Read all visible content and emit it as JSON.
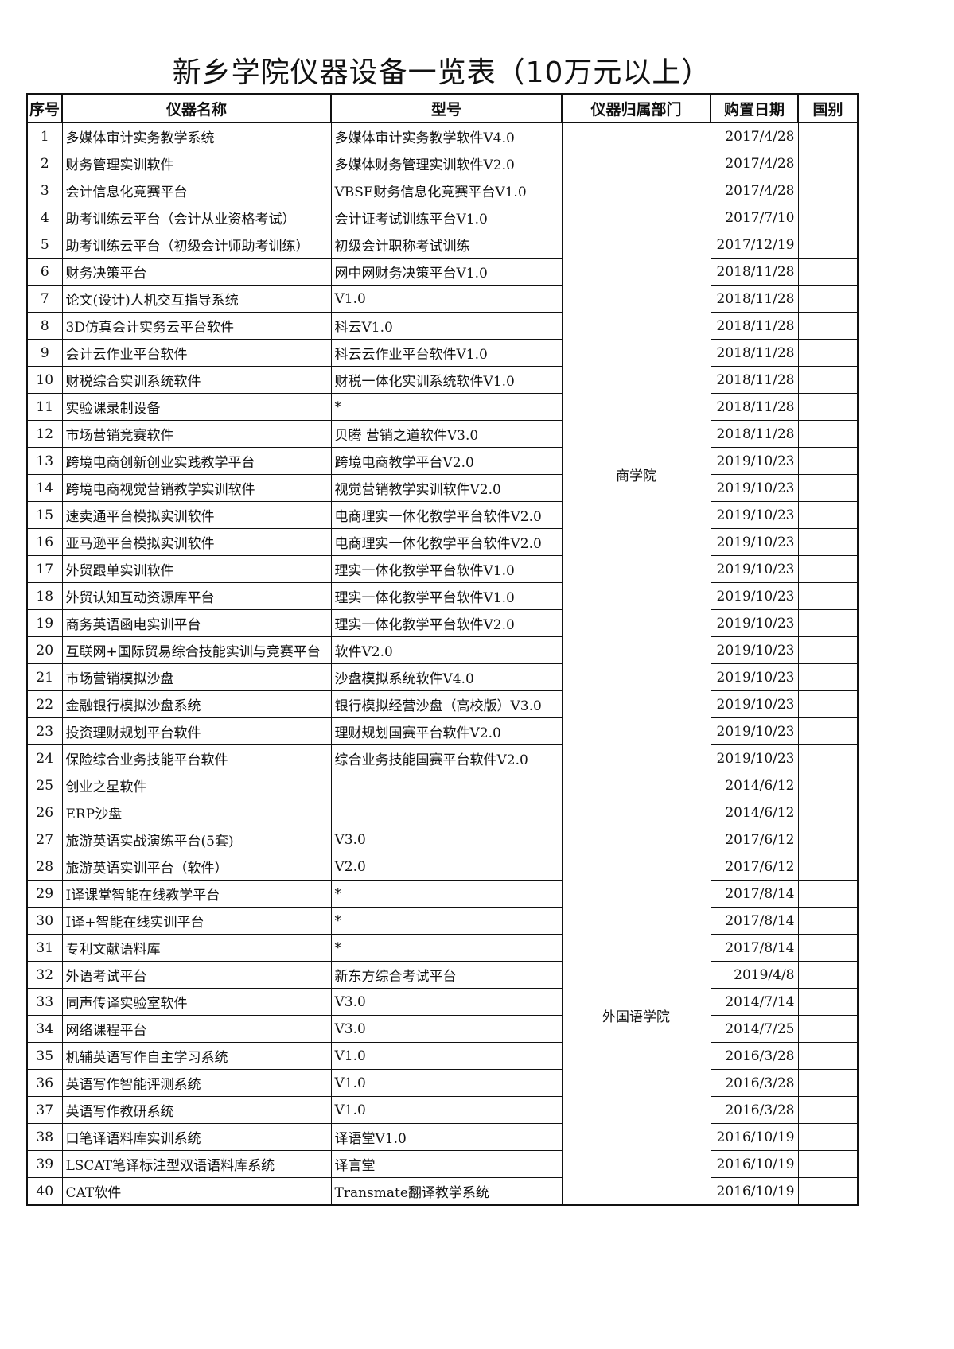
{
  "title": "新乡学院仪器设备一览表（10万元以上）",
  "headers": {
    "index": "序号",
    "name": "仪器名称",
    "model": "型号",
    "dept": "仪器归属部门",
    "date": "购置日期",
    "country": "国别"
  },
  "departments": [
    {
      "name": "商学院",
      "rows": [
        1,
        26
      ]
    },
    {
      "name": "外国语学院",
      "rows": [
        27,
        40
      ]
    }
  ],
  "rows": [
    {
      "no": "1",
      "name": "多媒体审计实务教学系统",
      "model": "多媒体审计实务教学软件V4.0",
      "date": "2017/4/28",
      "country": ""
    },
    {
      "no": "2",
      "name": "财务管理实训软件",
      "model": "多媒体财务管理实训软件V2.0",
      "date": "2017/4/28",
      "country": ""
    },
    {
      "no": "3",
      "name": "会计信息化竞赛平台",
      "model": "VBSE财务信息化竞赛平台V1.0",
      "date": "2017/4/28",
      "country": ""
    },
    {
      "no": "4",
      "name": "助考训练云平台（会计从业资格考试）",
      "model": "会计证考试训练平台V1.0",
      "date": "2017/7/10",
      "country": ""
    },
    {
      "no": "5",
      "name": "助考训练云平台（初级会计师助考训练）",
      "model": "初级会计职称考试训练",
      "date": "2017/12/19",
      "country": ""
    },
    {
      "no": "6",
      "name": "财务决策平台",
      "model": "网中网财务决策平台V1.0",
      "date": "2018/11/28",
      "country": ""
    },
    {
      "no": "7",
      "name": "论文(设计)人机交互指导系统",
      "model": "V1.0",
      "date": "2018/11/28",
      "country": ""
    },
    {
      "no": "8",
      "name": "3D仿真会计实务云平台软件",
      "model": "科云V1.0",
      "date": "2018/11/28",
      "country": ""
    },
    {
      "no": "9",
      "name": "会计云作业平台软件",
      "model": "科云云作业平台软件V1.0",
      "date": "2018/11/28",
      "country": ""
    },
    {
      "no": "10",
      "name": "财税综合实训系统软件",
      "model": "财税一体化实训系统软件V1.0",
      "date": "2018/11/28",
      "country": ""
    },
    {
      "no": "11",
      "name": "实验课录制设备",
      "model": "*",
      "date": "2018/11/28",
      "country": ""
    },
    {
      "no": "12",
      "name": "市场营销竞赛软件",
      "model": "贝腾 营销之道软件V3.0",
      "date": "2018/11/28",
      "country": ""
    },
    {
      "no": "13",
      "name": "跨境电商创新创业实践教学平台",
      "model": "跨境电商教学平台V2.0",
      "date": "2019/10/23",
      "country": ""
    },
    {
      "no": "14",
      "name": "跨境电商视觉营销教学实训软件",
      "model": "视觉营销教学实训软件V2.0",
      "date": "2019/10/23",
      "country": ""
    },
    {
      "no": "15",
      "name": "速卖通平台模拟实训软件",
      "model": "电商理实一体化教学平台软件V2.0",
      "date": "2019/10/23",
      "country": ""
    },
    {
      "no": "16",
      "name": "亚马逊平台模拟实训软件",
      "model": "电商理实一体化教学平台软件V2.0",
      "date": "2019/10/23",
      "country": ""
    },
    {
      "no": "17",
      "name": "外贸跟单实训软件",
      "model": "理实一体化教学平台软件V1.0",
      "date": "2019/10/23",
      "country": ""
    },
    {
      "no": "18",
      "name": "外贸认知互动资源库平台",
      "model": "理实一体化教学平台软件V1.0",
      "date": "2019/10/23",
      "country": ""
    },
    {
      "no": "19",
      "name": "商务英语函电实训平台",
      "model": "理实一体化教学平台软件V2.0",
      "date": "2019/10/23",
      "country": ""
    },
    {
      "no": "20",
      "name": "互联网+国际贸易综合技能实训与竞赛平台",
      "model": "软件V2.0",
      "date": "2019/10/23",
      "country": ""
    },
    {
      "no": "21",
      "name": "市场营销模拟沙盘",
      "model": "沙盘模拟系统软件V4.0",
      "date": "2019/10/23",
      "country": ""
    },
    {
      "no": "22",
      "name": "金融银行模拟沙盘系统",
      "model": "银行模拟经营沙盘（高校版）V3.0",
      "date": "2019/10/23",
      "country": ""
    },
    {
      "no": "23",
      "name": "投资理财规划平台软件",
      "model": "理财规划国赛平台软件V2.0",
      "date": "2019/10/23",
      "country": ""
    },
    {
      "no": "24",
      "name": "保险综合业务技能平台软件",
      "model": "综合业务技能国赛平台软件V2.0",
      "date": "2019/10/23",
      "country": ""
    },
    {
      "no": "25",
      "name": "创业之星软件",
      "model": "",
      "date": "2014/6/12",
      "country": ""
    },
    {
      "no": "26",
      "name": "ERP沙盘",
      "model": "",
      "date": "2014/6/12",
      "country": ""
    },
    {
      "no": "27",
      "name": "旅游英语实战演练平台(5套)",
      "model": "V3.0",
      "date": "2017/6/12",
      "country": ""
    },
    {
      "no": "28",
      "name": "旅游英语实训平台（软件）",
      "model": "V2.0",
      "date": "2017/6/12",
      "country": ""
    },
    {
      "no": "29",
      "name": "I译课堂智能在线教学平台",
      "model": "*",
      "date": "2017/8/14",
      "country": ""
    },
    {
      "no": "30",
      "name": "I译+智能在线实训平台",
      "model": "*",
      "date": "2017/8/14",
      "country": ""
    },
    {
      "no": "31",
      "name": "专利文献语料库",
      "model": "*",
      "date": "2017/8/14",
      "country": ""
    },
    {
      "no": "32",
      "name": "外语考试平台",
      "model": "新东方综合考试平台",
      "date": "2019/4/8",
      "country": ""
    },
    {
      "no": "33",
      "name": "同声传译实验室软件",
      "model": "V3.0",
      "date": "2014/7/14",
      "country": ""
    },
    {
      "no": "34",
      "name": "网络课程平台",
      "model": "V3.0",
      "date": "2014/7/25",
      "country": ""
    },
    {
      "no": "35",
      "name": "机辅英语写作自主学习系统",
      "model": "V1.0",
      "date": "2016/3/28",
      "country": ""
    },
    {
      "no": "36",
      "name": "英语写作智能评测系统",
      "model": "V1.0",
      "date": "2016/3/28",
      "country": ""
    },
    {
      "no": "37",
      "name": "英语写作教研系统",
      "model": "V1.0",
      "date": "2016/3/28",
      "country": ""
    },
    {
      "no": "38",
      "name": "口笔译语料库实训系统",
      "model": "译语堂V1.0",
      "date": "2016/10/19",
      "country": ""
    },
    {
      "no": "39",
      "name": "LSCAT笔译标注型双语语料库系统",
      "model": "译言堂",
      "date": "2016/10/19",
      "country": ""
    },
    {
      "no": "40",
      "name": "CAT软件",
      "model": "Transmate翻译教学系统",
      "date": "2016/10/19",
      "country": ""
    }
  ]
}
